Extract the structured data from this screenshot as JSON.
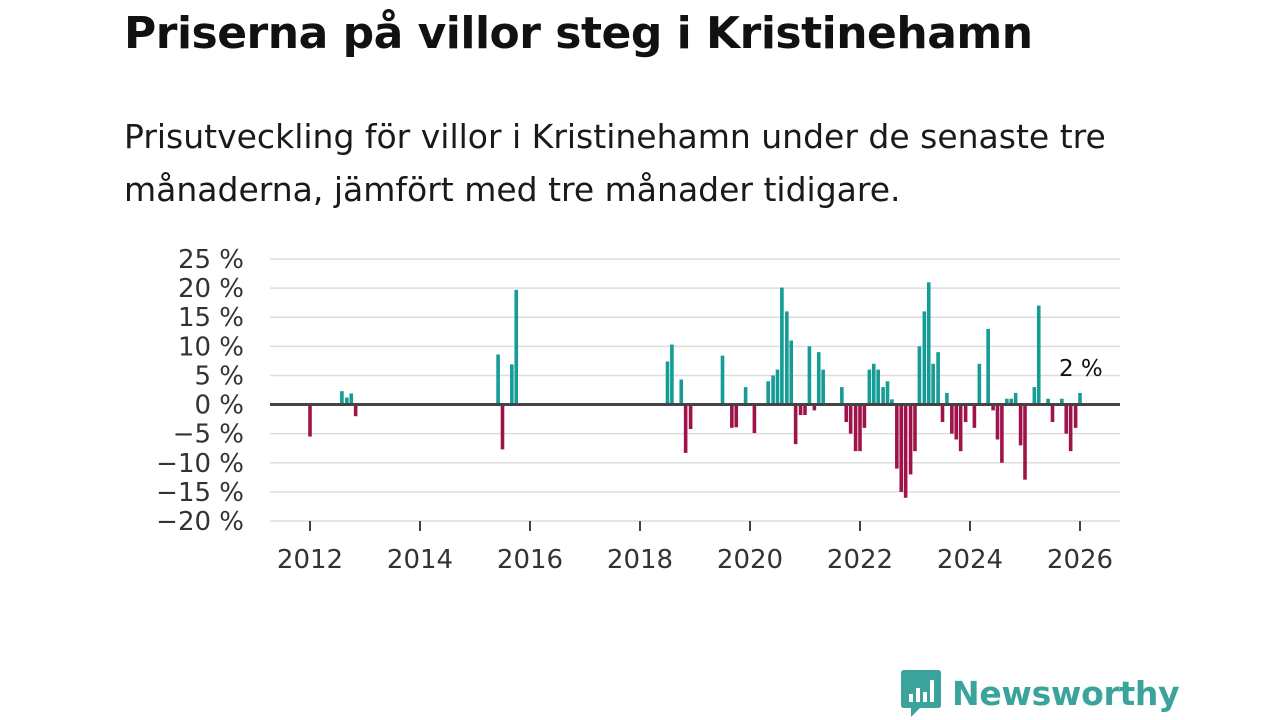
{
  "header": {
    "title": "Priserna på villor steg i Kristinehamn",
    "subtitle": "Prisutveckling för villor i Kristinehamn under de senaste tre månaderna, jämfört med tre månader tidigare."
  },
  "brand": {
    "name": "Newsworthy"
  },
  "colors": {
    "positive": "#169c96",
    "negative": "#a0134a",
    "grid": "#dddddd",
    "zero_line": "#444444",
    "brand": "#3aa39b"
  },
  "chart_data": {
    "type": "bar",
    "title": "Priserna på villor steg i Kristinehamn",
    "xlabel": "",
    "ylabel": "",
    "unit": "%",
    "xlim": [
      2011.0,
      2026.7
    ],
    "ylim": [
      -20,
      25
    ],
    "y_ticks": [
      -20,
      -15,
      -10,
      -5,
      0,
      5,
      10,
      15,
      20,
      25
    ],
    "y_tick_labels": [
      "−20 %",
      "−15 %",
      "−10 %",
      "−5 %",
      "0 %",
      "5 %",
      "10 %",
      "15 %",
      "20 %",
      "25 %"
    ],
    "x_ticks": [
      2012,
      2014,
      2016,
      2018,
      2020,
      2022,
      2024,
      2026
    ],
    "x_tick_labels": [
      "2012",
      "2014",
      "2016",
      "2018",
      "2020",
      "2022",
      "2024",
      "2026"
    ],
    "annotation": {
      "label": "2 %",
      "x": 2025.98,
      "value": 2
    },
    "series": [
      {
        "name": "Prisutveckling",
        "x": [
          2012.0,
          2012.58,
          2012.67,
          2012.75,
          2012.83,
          2015.42,
          2015.5,
          2015.67,
          2015.75,
          2018.5,
          2018.58,
          2018.75,
          2018.83,
          2018.92,
          2019.5,
          2019.67,
          2019.75,
          2019.92,
          2020.08,
          2020.33,
          2020.42,
          2020.5,
          2020.58,
          2020.67,
          2020.75,
          2020.83,
          2020.92,
          2021.0,
          2021.08,
          2021.17,
          2021.25,
          2021.33,
          2021.67,
          2021.75,
          2021.83,
          2021.92,
          2022.0,
          2022.08,
          2022.17,
          2022.25,
          2022.33,
          2022.42,
          2022.5,
          2022.58,
          2022.67,
          2022.75,
          2022.83,
          2022.92,
          2023.0,
          2023.08,
          2023.17,
          2023.25,
          2023.33,
          2023.42,
          2023.5,
          2023.58,
          2023.67,
          2023.75,
          2023.83,
          2023.92,
          2024.08,
          2024.17,
          2024.33,
          2024.42,
          2024.5,
          2024.58,
          2024.67,
          2024.75,
          2024.83,
          2024.92,
          2025.0,
          2025.17,
          2025.25,
          2025.42,
          2025.5,
          2025.67,
          2025.75,
          2025.83,
          2025.92,
          2026.0
        ],
        "values": [
          -5.5,
          2.3,
          1.2,
          1.9,
          -2.0,
          8.6,
          -7.7,
          6.9,
          19.7,
          7.4,
          10.3,
          4.3,
          -8.3,
          -4.2,
          8.4,
          -4.0,
          -3.9,
          3.0,
          -4.9,
          4.0,
          5.0,
          6.0,
          20.1,
          16.0,
          11.0,
          -6.8,
          -1.8,
          -1.8,
          10.0,
          -1.0,
          9.0,
          6.0,
          3.0,
          -3.0,
          -5.0,
          -8.0,
          -8.0,
          -4.0,
          6.0,
          7.0,
          6.0,
          3.0,
          4.0,
          0.9,
          -11.0,
          -15.0,
          -16.0,
          -12.0,
          -8.0,
          10.0,
          16.0,
          21.0,
          7.0,
          9.0,
          -3.0,
          2.0,
          -5.0,
          -6.0,
          -8.0,
          -3.0,
          -4.0,
          7.0,
          13.0,
          -1.0,
          -6.0,
          -10.0,
          1.0,
          1.0,
          2.0,
          -7.0,
          -12.9,
          3.0,
          17.0,
          1.0,
          -3.0,
          1.0,
          -5.0,
          -8.0,
          -4.0,
          2.0
        ]
      }
    ]
  }
}
